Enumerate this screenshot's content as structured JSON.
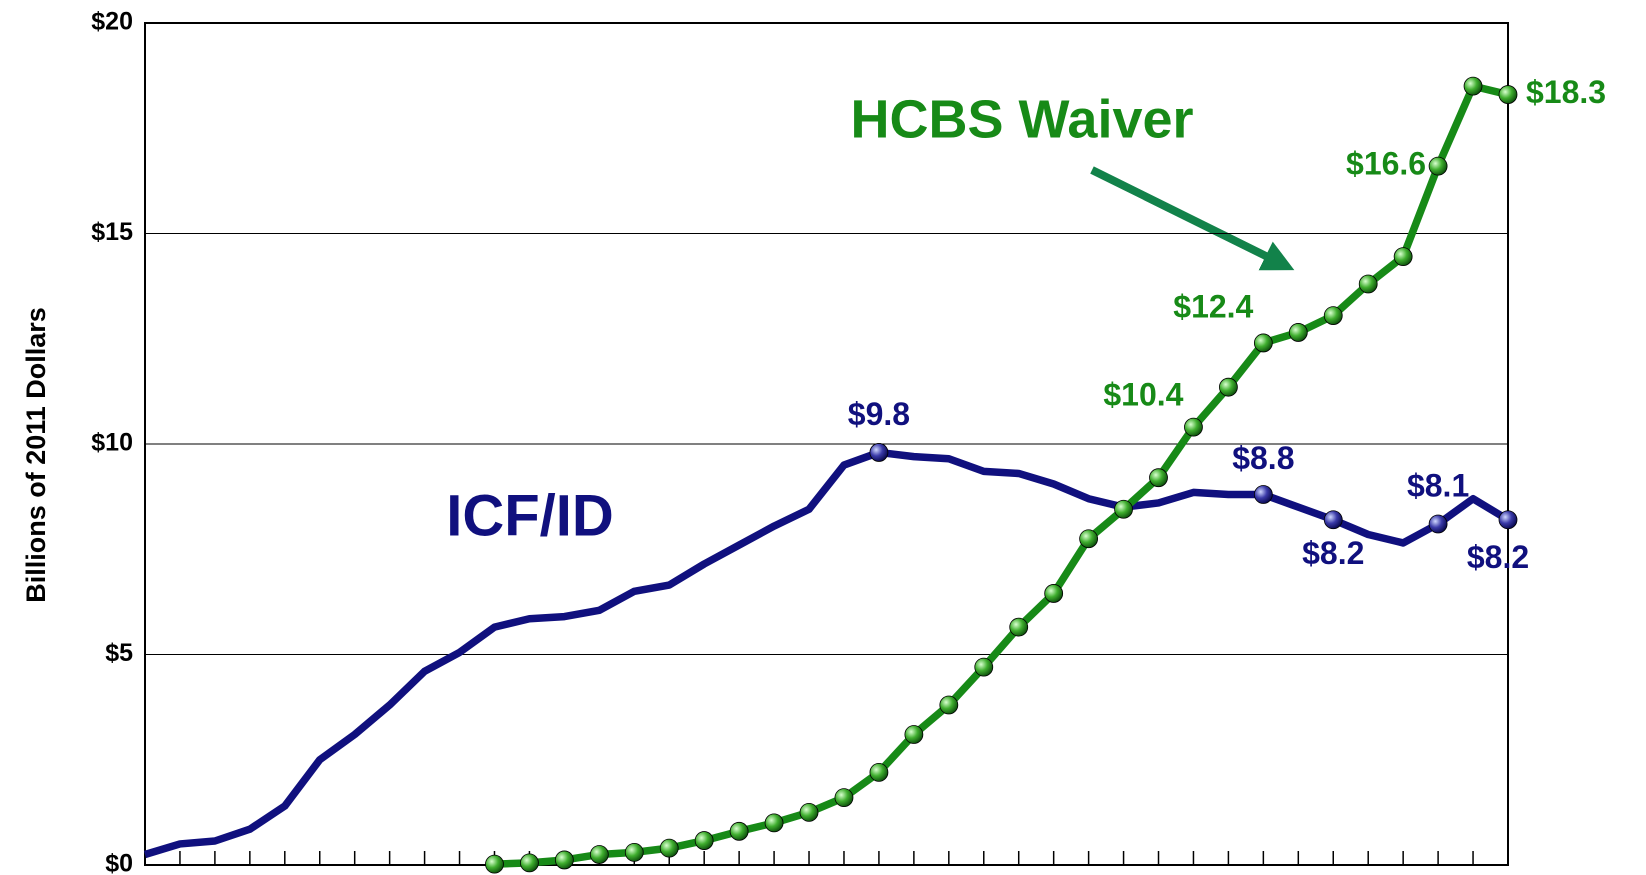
{
  "chart_data": {
    "type": "line",
    "ylabel": "Billions of 2011 Dollars",
    "categories": [
      null,
      null,
      null,
      null,
      null,
      null,
      null,
      null,
      null,
      null,
      null,
      null,
      null,
      null,
      null,
      null,
      null,
      null,
      null,
      null,
      null,
      null,
      null,
      null,
      null,
      null,
      null,
      null,
      null,
      null,
      null,
      null,
      null,
      null,
      null,
      null,
      null,
      null,
      null,
      null
    ],
    "ylim": [
      0,
      20
    ],
    "yticks": [
      {
        "value": 0,
        "label": "$0"
      },
      {
        "value": 5,
        "label": "$5"
      },
      {
        "value": 10,
        "label": "$10"
      },
      {
        "value": 15,
        "label": "$15"
      },
      {
        "value": 20,
        "label": "$20"
      }
    ],
    "grid": true,
    "series": [
      {
        "name": "ICF/ID",
        "color": "#10107e",
        "marker": false,
        "values": [
          0.25,
          0.5,
          0.57,
          0.85,
          1.4,
          2.5,
          3.1,
          3.8,
          4.6,
          5.05,
          5.65,
          5.85,
          5.9,
          6.05,
          6.5,
          6.65,
          7.15,
          7.6,
          8.05,
          8.45,
          9.5,
          9.8,
          9.7,
          9.65,
          9.35,
          9.3,
          9.05,
          8.7,
          8.5,
          8.6,
          8.85,
          8.8,
          8.8,
          8.5,
          8.2,
          7.85,
          7.65,
          8.1,
          8.7,
          8.2
        ],
        "value_labels": [
          null,
          null,
          null,
          null,
          null,
          null,
          null,
          null,
          null,
          null,
          null,
          null,
          null,
          null,
          null,
          null,
          null,
          null,
          null,
          null,
          null,
          "$9.8",
          null,
          null,
          null,
          null,
          null,
          null,
          null,
          null,
          null,
          null,
          "$8.8",
          null,
          "$8.2",
          null,
          null,
          "$8.1",
          null,
          "$8.2"
        ]
      },
      {
        "name": "HCBS Waiver",
        "color": "#178a17",
        "marker": true,
        "values": [
          null,
          null,
          null,
          null,
          null,
          null,
          null,
          null,
          null,
          null,
          0.02,
          0.05,
          0.12,
          0.25,
          0.3,
          0.4,
          0.58,
          0.8,
          1.0,
          1.25,
          1.6,
          2.2,
          3.1,
          3.8,
          4.7,
          5.65,
          6.45,
          7.75,
          8.45,
          9.2,
          10.4,
          11.35,
          12.4,
          12.65,
          13.05,
          13.8,
          14.45,
          16.6,
          18.5,
          18.3
        ],
        "value_labels": [
          null,
          null,
          null,
          null,
          null,
          null,
          null,
          null,
          null,
          null,
          null,
          null,
          null,
          null,
          null,
          null,
          null,
          null,
          null,
          null,
          null,
          null,
          null,
          null,
          null,
          null,
          null,
          null,
          null,
          null,
          "$10.4",
          null,
          "$12.4",
          null,
          null,
          null,
          null,
          "$16.6",
          null,
          "$18.3"
        ]
      }
    ]
  }
}
